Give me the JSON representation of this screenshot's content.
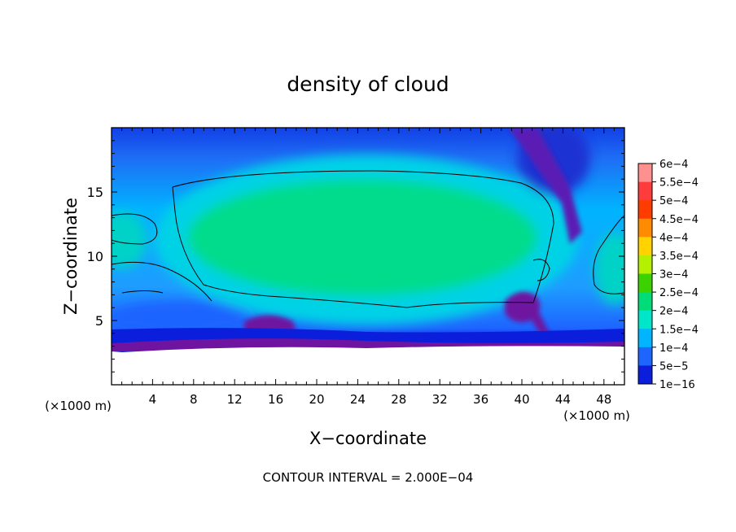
{
  "chart_data": {
    "type": "heatmap",
    "title": "density of cloud",
    "xlabel": "X−coordinate",
    "ylabel": "Z−coordinate",
    "x_unit_left": "(×1000 m)",
    "x_unit_right": "(×1000 m)",
    "xlim": [
      0,
      50
    ],
    "ylim": [
      0,
      20
    ],
    "x_ticks": [
      {
        "value": 4,
        "label": "4"
      },
      {
        "value": 8,
        "label": "8"
      },
      {
        "value": 12,
        "label": "12"
      },
      {
        "value": 16,
        "label": "16"
      },
      {
        "value": 20,
        "label": "20"
      },
      {
        "value": 24,
        "label": "24"
      },
      {
        "value": 28,
        "label": "28"
      },
      {
        "value": 32,
        "label": "32"
      },
      {
        "value": 36,
        "label": "36"
      },
      {
        "value": 40,
        "label": "40"
      },
      {
        "value": 44,
        "label": "44"
      },
      {
        "value": 48,
        "label": "48"
      }
    ],
    "y_ticks": [
      {
        "value": 5,
        "label": "5"
      },
      {
        "value": 10,
        "label": "10"
      },
      {
        "value": 15,
        "label": "15"
      }
    ],
    "colorbar": {
      "levels": [
        {
          "label": "6e−4",
          "color": "#ff9090"
        },
        {
          "label": "5.5e−4",
          "color": "#ff3c3c"
        },
        {
          "label": "5e−4",
          "color": "#ff3c00"
        },
        {
          "label": "4.5e−4",
          "color": "#ff8c00"
        },
        {
          "label": "4e−4",
          "color": "#ffd200"
        },
        {
          "label": "3.5e−4",
          "color": "#b4f000"
        },
        {
          "label": "3e−4",
          "color": "#3cd200"
        },
        {
          "label": "2.5e−4",
          "color": "#00dc78"
        },
        {
          "label": "2e−4",
          "color": "#00e6c8"
        },
        {
          "label": "1.5e−4",
          "color": "#00b4ff"
        },
        {
          "label": "1e−4",
          "color": "#1e64ff"
        },
        {
          "label": "5e−5",
          "color": "#0a1edc"
        },
        {
          "label": "1e−16",
          "color": "#6e14a0"
        }
      ]
    },
    "notes": "CONTOUR INTERVAL = 2.000E−04"
  }
}
